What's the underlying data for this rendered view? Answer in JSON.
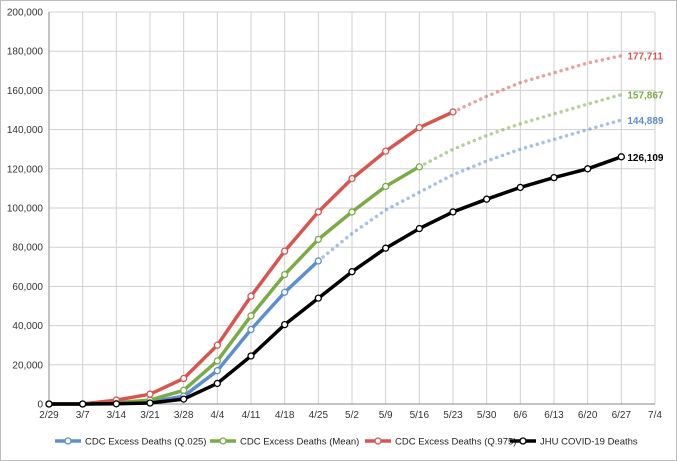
{
  "chart_data": {
    "type": "line",
    "title": "",
    "xlabel": "",
    "ylabel": "",
    "x": [
      "2/29",
      "3/7",
      "3/14",
      "3/21",
      "3/28",
      "4/4",
      "4/11",
      "4/18",
      "4/25",
      "5/2",
      "5/9",
      "5/16",
      "5/23",
      "5/30",
      "6/6",
      "6/13",
      "6/20",
      "6/27",
      "7/4"
    ],
    "ylim": [
      0,
      200000
    ],
    "yticks": [
      0,
      20000,
      40000,
      60000,
      80000,
      100000,
      120000,
      140000,
      160000,
      180000,
      200000
    ],
    "ytick_labels": [
      "0",
      "20,000",
      "40,000",
      "60,000",
      "80,000",
      "100,000",
      "120,000",
      "140,000",
      "160,000",
      "180,000",
      "200,000"
    ],
    "grid": true,
    "legend_position": "bottom",
    "series": [
      {
        "name": "CDC Excess Deaths (Q.025)",
        "color": "#5b8fd1",
        "values": [
          0,
          0,
          300,
          1000,
          4000,
          17000,
          38000,
          57000,
          73000,
          null,
          null,
          null,
          null,
          null,
          null,
          null,
          null,
          null,
          null
        ],
        "projection": [
          null,
          null,
          null,
          null,
          null,
          null,
          null,
          null,
          73000,
          87000,
          99000,
          108000,
          117000,
          124000,
          130000,
          135000,
          140000,
          144889,
          null
        ],
        "end_label": "144,889"
      },
      {
        "name": "CDC Excess Deaths (Mean)",
        "color": "#7aab45",
        "values": [
          0,
          0,
          600,
          2000,
          7000,
          22000,
          45000,
          66000,
          84000,
          98000,
          111000,
          121000,
          null,
          null,
          null,
          null,
          null,
          null,
          null
        ],
        "projection": [
          null,
          null,
          null,
          null,
          null,
          null,
          null,
          null,
          null,
          null,
          null,
          121000,
          130000,
          137000,
          143000,
          148000,
          153000,
          157867,
          null
        ],
        "end_label": "157,867"
      },
      {
        "name": "CDC Excess Deaths (Q.975)",
        "color": "#d9554f",
        "values": [
          0,
          0,
          2000,
          5000,
          13000,
          30000,
          55000,
          78000,
          98000,
          115000,
          129000,
          141000,
          149000,
          null,
          null,
          null,
          null,
          null,
          null
        ],
        "projection": [
          null,
          null,
          null,
          null,
          null,
          null,
          null,
          null,
          null,
          null,
          null,
          null,
          149000,
          157000,
          164000,
          169000,
          174000,
          177711,
          null
        ],
        "end_label": "177,711"
      },
      {
        "name": "JHU COVID-19 Deaths",
        "color": "#000000",
        "values": [
          0,
          0,
          100,
          500,
          2500,
          10500,
          24500,
          40500,
          54000,
          67500,
          79500,
          89500,
          98000,
          104500,
          110500,
          115500,
          120000,
          126109,
          null
        ],
        "projection": [],
        "end_label": "126,109"
      }
    ]
  }
}
